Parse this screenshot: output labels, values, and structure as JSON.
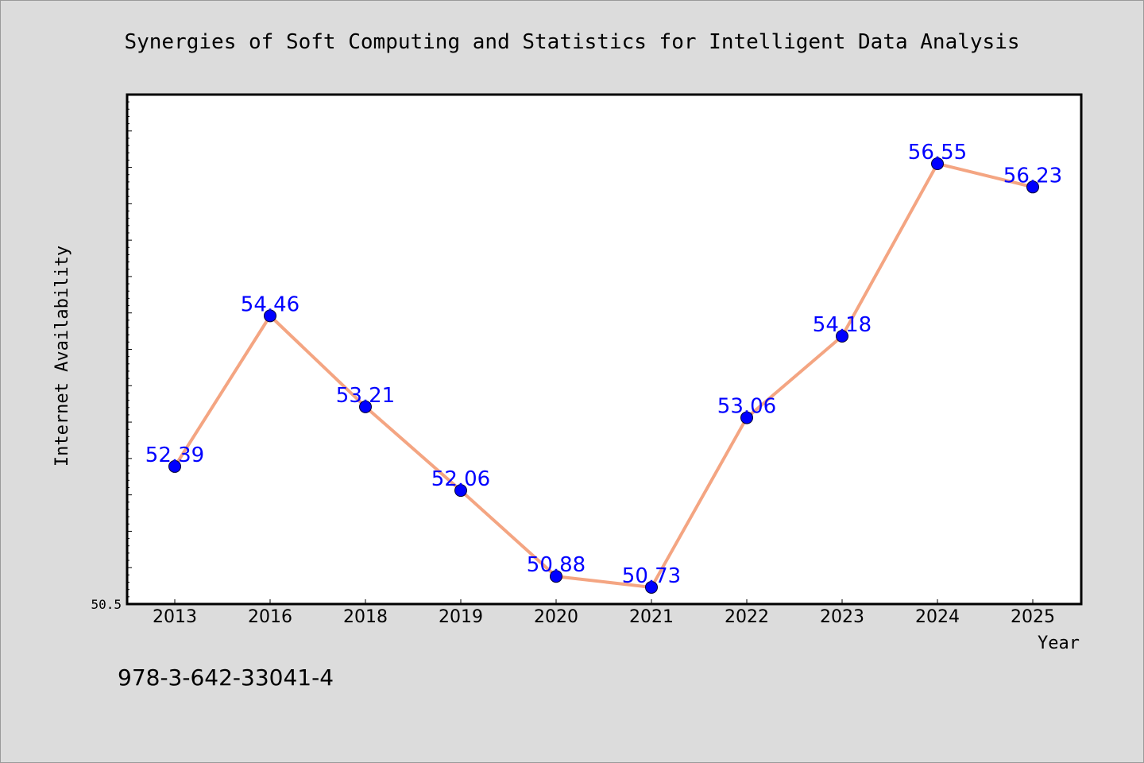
{
  "chart_data": {
    "type": "line",
    "title": "Synergies of Soft Computing and Statistics for Intelligent Data Analysis",
    "xlabel": "Year",
    "ylabel": "Internet Availability",
    "categories": [
      "2013",
      "2016",
      "2018",
      "2019",
      "2020",
      "2021",
      "2022",
      "2023",
      "2024",
      "2025"
    ],
    "values": [
      52.39,
      54.46,
      53.21,
      52.06,
      50.88,
      50.73,
      53.06,
      54.18,
      56.55,
      56.23
    ],
    "value_labels": [
      "52.39",
      "54.46",
      "53.21",
      "52.06",
      "50.88",
      "50.73",
      "53.06",
      "54.18",
      "56.55",
      "56.23"
    ],
    "ylim": [
      50.5,
      57.5
    ],
    "y_min_label": "50.5",
    "grid": false,
    "line_color": "#f4a582",
    "marker_color": "#0000ff",
    "label_color": "#0000ff"
  },
  "footer": {
    "isbn": "978-3-642-33041-4"
  }
}
